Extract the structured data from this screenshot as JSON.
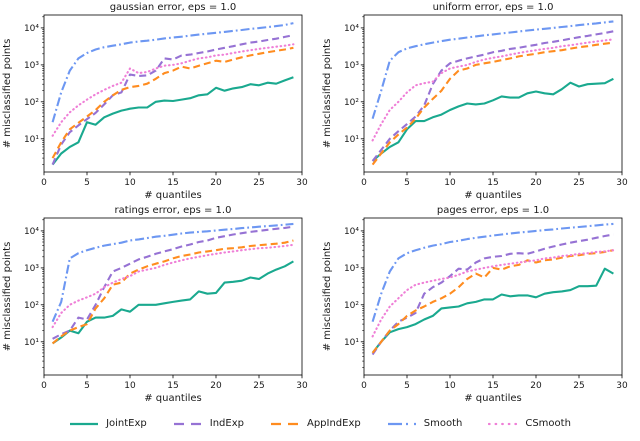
{
  "legend": {
    "items": [
      {
        "label": "JointExp",
        "color": "#1aa98f",
        "dash": "solid"
      },
      {
        "label": "IndExp",
        "color": "#9672d4",
        "dash": "dashed"
      },
      {
        "label": "AppIndExp",
        "color": "#ff8c1f",
        "dash": "dashed"
      },
      {
        "label": "Smooth",
        "color": "#6d97f2",
        "dash": "dashdot"
      },
      {
        "label": "CSmooth",
        "color": "#ef7fd7",
        "dash": "dotted"
      }
    ]
  },
  "chart_data": [
    {
      "type": "line",
      "title": "gaussian error, eps = 1.0",
      "xlabel": "# quantiles",
      "ylabel": "# misclassified points",
      "xlim": [
        0,
        30
      ],
      "xticks": [
        0,
        5,
        10,
        15,
        20,
        25,
        30
      ],
      "ylog": true,
      "ylim_log": [
        0.1,
        4.35
      ],
      "yticks_exp": [
        1,
        2,
        3,
        4
      ],
      "ytick_labels": [
        "10¹",
        "10²",
        "10³",
        "10⁴"
      ],
      "x": [
        1,
        2,
        3,
        4,
        5,
        6,
        7,
        8,
        9,
        10,
        11,
        12,
        13,
        14,
        15,
        16,
        17,
        18,
        19,
        20,
        21,
        22,
        23,
        24,
        25,
        26,
        27,
        28,
        29
      ],
      "series": [
        {
          "name": "JointExp",
          "values": [
            2,
            4,
            6,
            8,
            28,
            24,
            38,
            48,
            58,
            65,
            70,
            70,
            100,
            108,
            105,
            115,
            125,
            150,
            160,
            240,
            200,
            230,
            250,
            300,
            280,
            330,
            310,
            380,
            460
          ]
        },
        {
          "name": "IndExp",
          "values": [
            2,
            7,
            15,
            23,
            34,
            50,
            85,
            150,
            180,
            550,
            500,
            520,
            700,
            1500,
            1400,
            1800,
            1900,
            2100,
            2300,
            2600,
            2900,
            3200,
            3600,
            4000,
            4300,
            4700,
            5100,
            5700,
            6400
          ]
        },
        {
          "name": "AppIndExp",
          "values": [
            3,
            8,
            18,
            27,
            40,
            60,
            100,
            150,
            210,
            250,
            270,
            310,
            420,
            600,
            700,
            900,
            800,
            950,
            1100,
            1300,
            1200,
            1400,
            1600,
            1800,
            2000,
            2200,
            2400,
            2600,
            2900
          ]
        },
        {
          "name": "Smooth",
          "values": [
            28,
            180,
            700,
            1500,
            2100,
            2600,
            3000,
            3300,
            3600,
            4000,
            4300,
            4500,
            4800,
            5200,
            5500,
            5800,
            6200,
            6600,
            7000,
            7400,
            7800,
            8300,
            8800,
            9400,
            9900,
            10500,
            11200,
            12000,
            13500
          ]
        },
        {
          "name": "CSmooth",
          "values": [
            12,
            28,
            52,
            80,
            115,
            160,
            210,
            270,
            330,
            800,
            600,
            640,
            800,
            950,
            1000,
            1100,
            1300,
            1500,
            1600,
            1800,
            1900,
            2100,
            2300,
            2500,
            2700,
            2900,
            3100,
            3300,
            3600
          ]
        }
      ]
    },
    {
      "type": "line",
      "title": "uniform error, eps = 1.0",
      "xlabel": "# quantiles",
      "ylabel": "# misclassified points",
      "xlim": [
        0,
        30
      ],
      "xticks": [
        0,
        5,
        10,
        15,
        20,
        25,
        30
      ],
      "ylog": true,
      "ylim_log": [
        0.1,
        4.35
      ],
      "yticks_exp": [
        1,
        2,
        3,
        4
      ],
      "ytick_labels": [
        "10¹",
        "10²",
        "10³",
        "10⁴"
      ],
      "x": [
        1,
        2,
        3,
        4,
        5,
        6,
        7,
        8,
        9,
        10,
        11,
        12,
        13,
        14,
        15,
        16,
        17,
        18,
        19,
        20,
        21,
        22,
        23,
        24,
        25,
        26,
        27,
        28,
        29
      ],
      "series": [
        {
          "name": "JointExp",
          "values": [
            2.5,
            4,
            6,
            8,
            18,
            30,
            30,
            38,
            45,
            60,
            75,
            90,
            85,
            90,
            110,
            140,
            130,
            130,
            170,
            190,
            170,
            160,
            220,
            330,
            260,
            300,
            310,
            320,
            420
          ]
        },
        {
          "name": "IndExp",
          "values": [
            2.5,
            5,
            10,
            16,
            25,
            40,
            80,
            300,
            700,
            1100,
            1300,
            1500,
            1700,
            1900,
            2200,
            2400,
            2700,
            2900,
            3200,
            3500,
            3900,
            4200,
            4600,
            5100,
            5600,
            6100,
            6700,
            7300,
            8100
          ]
        },
        {
          "name": "AppIndExp",
          "values": [
            2,
            4,
            8,
            13,
            20,
            35,
            70,
            120,
            200,
            420,
            700,
            800,
            1000,
            1100,
            1200,
            1350,
            1500,
            1700,
            1850,
            2000,
            2200,
            2350,
            2500,
            2750,
            3000,
            3200,
            3500,
            3750,
            4000
          ]
        },
        {
          "name": "Smooth",
          "values": [
            35,
            200,
            1300,
            2200,
            2800,
            3200,
            3600,
            4000,
            4400,
            4800,
            5100,
            5500,
            5900,
            6300,
            6700,
            7100,
            7500,
            8000,
            8500,
            9000,
            9500,
            10000,
            10600,
            11200,
            11900,
            12600,
            13300,
            14100,
            15000
          ]
        },
        {
          "name": "CSmooth",
          "values": [
            9,
            25,
            60,
            100,
            180,
            280,
            320,
            350,
            600,
            800,
            900,
            1000,
            1200,
            1400,
            1550,
            1700,
            1900,
            2100,
            2300,
            2500,
            2700,
            2900,
            3200,
            3400,
            3700,
            4000,
            4300,
            4600,
            4900
          ]
        }
      ]
    },
    {
      "type": "line",
      "title": "ratings error, eps = 1.0",
      "xlabel": "# quantiles",
      "ylabel": "# misclassified points",
      "xlim": [
        0,
        30
      ],
      "xticks": [
        0,
        5,
        10,
        15,
        20,
        25,
        30
      ],
      "ylog": true,
      "ylim_log": [
        0.1,
        4.35
      ],
      "yticks_exp": [
        1,
        2,
        3,
        4
      ],
      "ytick_labels": [
        "10¹",
        "10²",
        "10³",
        "10⁴"
      ],
      "x": [
        1,
        2,
        3,
        4,
        5,
        6,
        7,
        8,
        9,
        10,
        11,
        12,
        13,
        14,
        15,
        16,
        17,
        18,
        19,
        20,
        21,
        22,
        23,
        24,
        25,
        26,
        27,
        28,
        29
      ],
      "series": [
        {
          "name": "JointExp",
          "values": [
            9,
            13,
            20,
            17,
            35,
            45,
            45,
            50,
            75,
            65,
            100,
            100,
            100,
            110,
            120,
            130,
            140,
            230,
            200,
            210,
            400,
            420,
            450,
            550,
            500,
            700,
            900,
            1100,
            1500
          ]
        },
        {
          "name": "IndExp",
          "values": [
            12,
            16,
            20,
            45,
            40,
            100,
            300,
            800,
            1000,
            1300,
            1700,
            2000,
            2400,
            2800,
            3200,
            3800,
            4300,
            5000,
            5500,
            6500,
            7200,
            8000,
            8700,
            9400,
            10000,
            10700,
            11400,
            12100,
            13000
          ]
        },
        {
          "name": "AppIndExp",
          "values": [
            9,
            14,
            20,
            25,
            30,
            80,
            150,
            350,
            400,
            700,
            900,
            1100,
            1300,
            1500,
            1800,
            2100,
            2300,
            2600,
            2800,
            3000,
            3300,
            3400,
            3600,
            3900,
            4100,
            4300,
            4500,
            4800,
            5500
          ]
        },
        {
          "name": "Smooth",
          "values": [
            35,
            120,
            1800,
            2500,
            3000,
            3500,
            4000,
            4400,
            4800,
            5500,
            5900,
            6400,
            7000,
            7400,
            7900,
            8500,
            9000,
            9400,
            9800,
            10300,
            10800,
            11300,
            11900,
            12400,
            13000,
            13500,
            14100,
            14700,
            15500
          ]
        },
        {
          "name": "CSmooth",
          "values": [
            25,
            60,
            100,
            130,
            160,
            200,
            300,
            400,
            500,
            600,
            800,
            900,
            1000,
            1200,
            1400,
            1600,
            1800,
            2000,
            2200,
            2400,
            2600,
            2800,
            3000,
            3200,
            3400,
            3500,
            3700,
            3900,
            4200
          ]
        }
      ]
    },
    {
      "type": "line",
      "title": "pages error, eps = 1.0",
      "xlabel": "# quantiles",
      "ylabel": "# misclassified points",
      "xlim": [
        0,
        30
      ],
      "xticks": [
        0,
        5,
        10,
        15,
        20,
        25,
        30
      ],
      "ylog": true,
      "ylim_log": [
        0.1,
        4.35
      ],
      "yticks_exp": [
        1,
        2,
        3,
        4
      ],
      "ytick_labels": [
        "10¹",
        "10²",
        "10³",
        "10⁴"
      ],
      "x": [
        1,
        2,
        3,
        4,
        5,
        6,
        7,
        8,
        9,
        10,
        11,
        12,
        13,
        14,
        15,
        16,
        17,
        18,
        19,
        20,
        21,
        22,
        23,
        24,
        25,
        26,
        27,
        28,
        29
      ],
      "series": [
        {
          "name": "JointExp",
          "values": [
            5,
            10,
            18,
            22,
            25,
            30,
            40,
            50,
            80,
            85,
            90,
            110,
            120,
            140,
            140,
            190,
            170,
            180,
            180,
            160,
            200,
            220,
            230,
            250,
            320,
            320,
            330,
            950,
            700
          ]
        },
        {
          "name": "IndExp",
          "values": [
            4.5,
            10,
            20,
            35,
            45,
            60,
            200,
            300,
            400,
            600,
            950,
            900,
            1400,
            1800,
            2000,
            2100,
            2400,
            2500,
            2400,
            2800,
            3300,
            3800,
            4300,
            4800,
            5300,
            5800,
            6500,
            7300,
            8000
          ]
        },
        {
          "name": "AppIndExp",
          "values": [
            5,
            10,
            20,
            30,
            50,
            70,
            90,
            120,
            150,
            200,
            300,
            500,
            700,
            550,
            1000,
            900,
            1100,
            1200,
            1600,
            1400,
            1600,
            1700,
            1900,
            2100,
            2200,
            2400,
            2500,
            2700,
            3000
          ]
        },
        {
          "name": "Smooth",
          "values": [
            35,
            200,
            800,
            1800,
            2500,
            3000,
            3500,
            4000,
            4400,
            5000,
            5400,
            6000,
            6500,
            7000,
            7500,
            8000,
            8500,
            9000,
            9500,
            10000,
            10500,
            11000,
            11600,
            12200,
            12800,
            13400,
            14100,
            14800,
            15500
          ]
        },
        {
          "name": "CSmooth",
          "values": [
            14,
            40,
            90,
            150,
            250,
            350,
            400,
            450,
            500,
            550,
            650,
            800,
            900,
            1000,
            1100,
            1200,
            1300,
            1400,
            1500,
            1600,
            1800,
            1900,
            2100,
            2200,
            2400,
            2500,
            2700,
            2800,
            3000
          ]
        }
      ]
    }
  ]
}
